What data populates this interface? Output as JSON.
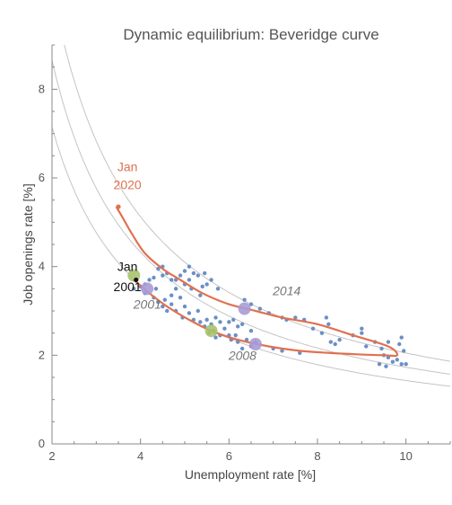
{
  "chart_data": {
    "type": "scatter",
    "title": "Dynamic equilibrium: Beveridge curve",
    "xlabel": "Unemployment rate [%]",
    "ylabel": "Job openings rate [%]",
    "xlim": [
      2,
      11
    ],
    "ylim": [
      0,
      9
    ],
    "x_ticks": [
      "2",
      "4",
      "6",
      "8",
      "10"
    ],
    "y_ticks": [
      "0",
      "2",
      "4",
      "6",
      "8"
    ],
    "colors": {
      "points": "#6b8fc7",
      "path": "#e07150",
      "equilibrium_curves": "#c4c4c4",
      "green_marker": "#a9c36e",
      "purple_marker": "#a99bd6",
      "axis": "#888888"
    },
    "equilibrium_curves": [
      {
        "k": 14.3
      },
      {
        "k": 17.3
      },
      {
        "k": 20.5
      }
    ],
    "scatter_points": [
      [
        3.85,
        3.5
      ],
      [
        4.0,
        3.55
      ],
      [
        4.1,
        3.6
      ],
      [
        4.2,
        3.7
      ],
      [
        4.3,
        3.75
      ],
      [
        4.1,
        3.4
      ],
      [
        4.3,
        3.3
      ],
      [
        4.4,
        3.95
      ],
      [
        4.5,
        3.8
      ],
      [
        4.5,
        4.0
      ],
      [
        4.6,
        3.85
      ],
      [
        4.35,
        3.5
      ],
      [
        4.4,
        3.2
      ],
      [
        4.5,
        3.1
      ],
      [
        4.55,
        3.25
      ],
      [
        4.6,
        3.0
      ],
      [
        4.7,
        3.15
      ],
      [
        4.8,
        3.0
      ],
      [
        4.7,
        3.35
      ],
      [
        4.8,
        3.5
      ],
      [
        4.7,
        3.7
      ],
      [
        4.8,
        3.7
      ],
      [
        4.9,
        3.8
      ],
      [
        5.0,
        3.9
      ],
      [
        5.1,
        4.0
      ],
      [
        5.2,
        3.85
      ],
      [
        5.3,
        3.8
      ],
      [
        5.1,
        3.7
      ],
      [
        5.0,
        3.6
      ],
      [
        5.15,
        3.5
      ],
      [
        4.9,
        3.3
      ],
      [
        5.0,
        3.1
      ],
      [
        5.1,
        2.95
      ],
      [
        4.95,
        2.85
      ],
      [
        5.2,
        2.8
      ],
      [
        5.3,
        3.0
      ],
      [
        5.35,
        3.35
      ],
      [
        5.4,
        3.55
      ],
      [
        5.5,
        3.6
      ],
      [
        5.45,
        3.85
      ],
      [
        5.6,
        3.7
      ],
      [
        5.75,
        3.5
      ],
      [
        5.35,
        2.75
      ],
      [
        5.45,
        2.65
      ],
      [
        5.5,
        2.8
      ],
      [
        5.6,
        2.7
      ],
      [
        5.7,
        2.85
      ],
      [
        5.8,
        2.75
      ],
      [
        5.55,
        2.5
      ],
      [
        5.7,
        2.4
      ],
      [
        5.8,
        2.45
      ],
      [
        5.9,
        2.6
      ],
      [
        6.0,
        2.45
      ],
      [
        5.65,
        2.55
      ],
      [
        6.0,
        2.75
      ],
      [
        6.1,
        2.8
      ],
      [
        6.2,
        2.65
      ],
      [
        6.3,
        2.7
      ],
      [
        6.15,
        2.45
      ],
      [
        6.05,
        2.35
      ],
      [
        6.2,
        2.3
      ],
      [
        6.4,
        2.35
      ],
      [
        6.5,
        2.55
      ],
      [
        6.5,
        2.2
      ],
      [
        6.3,
        2.15
      ],
      [
        6.6,
        2.3
      ],
      [
        6.35,
        3.25
      ],
      [
        6.5,
        3.15
      ],
      [
        6.7,
        3.05
      ],
      [
        6.9,
        2.95
      ],
      [
        7.2,
        2.85
      ],
      [
        7.3,
        2.8
      ],
      [
        7.5,
        2.85
      ],
      [
        7.7,
        2.8
      ],
      [
        7.9,
        2.6
      ],
      [
        8.2,
        2.85
      ],
      [
        8.25,
        2.7
      ],
      [
        8.1,
        2.5
      ],
      [
        8.3,
        2.3
      ],
      [
        8.5,
        2.35
      ],
      [
        8.8,
        2.45
      ],
      [
        9.0,
        2.5
      ],
      [
        9.0,
        2.6
      ],
      [
        9.1,
        2.2
      ],
      [
        9.3,
        2.3
      ],
      [
        9.45,
        2.15
      ],
      [
        9.5,
        2.0
      ],
      [
        9.4,
        1.8
      ],
      [
        9.55,
        1.75
      ],
      [
        9.6,
        1.95
      ],
      [
        9.7,
        1.85
      ],
      [
        9.8,
        1.9
      ],
      [
        9.9,
        1.8
      ],
      [
        10.0,
        1.8
      ],
      [
        9.95,
        2.1
      ],
      [
        9.85,
        2.25
      ],
      [
        9.9,
        2.4
      ],
      [
        9.6,
        2.3
      ],
      [
        8.4,
        2.25
      ],
      [
        7.2,
        2.1
      ],
      [
        7.6,
        2.05
      ],
      [
        7.0,
        2.15
      ]
    ],
    "path_2001_2020": {
      "x": [
        3.85,
        4.2,
        4.6,
        5.1,
        5.6,
        6.2,
        6.9,
        7.6,
        8.3,
        8.9,
        9.5,
        9.8,
        9.6,
        8.8,
        8.0,
        7.2,
        6.6,
        6.0,
        5.4,
        4.9,
        4.5,
        4.1,
        3.8,
        3.6,
        3.45
      ],
      "y": [
        3.7,
        3.4,
        3.1,
        2.8,
        2.55,
        2.35,
        2.2,
        2.1,
        2.05,
        2.02,
        2.0,
        2.0,
        2.2,
        2.45,
        2.7,
        2.85,
        3.0,
        3.15,
        3.4,
        3.7,
        3.95,
        4.3,
        4.75,
        5.1,
        5.35
      ]
    },
    "markers": [
      {
        "type": "green",
        "x": 3.85,
        "y": 3.8
      },
      {
        "type": "green",
        "x": 5.6,
        "y": 2.55
      },
      {
        "type": "purple",
        "x": 4.15,
        "y": 3.5
      },
      {
        "type": "purple",
        "x": 6.35,
        "y": 3.05
      },
      {
        "type": "purple",
        "x": 6.6,
        "y": 2.25
      }
    ],
    "start_dot": {
      "x": 3.9,
      "y": 3.7
    },
    "end_dot": {
      "x": 3.5,
      "y": 5.35
    },
    "annotations": [
      {
        "text": "Jan",
        "x": 3.3,
        "y": 6.15,
        "color": "#e07150",
        "italic": false
      },
      {
        "text": "2020",
        "x": 3.3,
        "y": 5.75,
        "color": "#e07150",
        "italic": false
      },
      {
        "text": "Jan",
        "x": 3.3,
        "y": 3.9,
        "color": "#111111",
        "italic": false
      },
      {
        "text": "2001",
        "x": 3.3,
        "y": 3.45,
        "color": "#111111",
        "italic": false
      },
      {
        "text": "2001",
        "x": 3.75,
        "y": 3.05,
        "color": "#777777",
        "italic": true
      },
      {
        "text": "2014",
        "x": 6.9,
        "y": 3.35,
        "color": "#777777",
        "italic": true
      },
      {
        "text": "2008",
        "x": 5.9,
        "y": 1.9,
        "color": "#777777",
        "italic": true
      }
    ]
  }
}
